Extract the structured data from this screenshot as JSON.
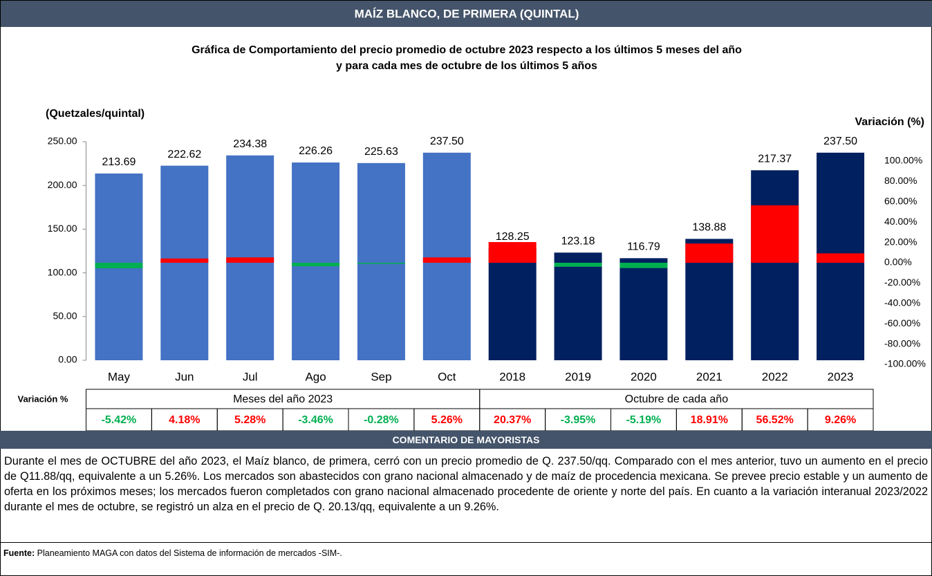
{
  "chart_data": {
    "type": "bar",
    "header": "MAÍZ BLANCO, DE PRIMERA (QUINTAL)",
    "title": "Gráfica de Comportamiento del precio promedio de octubre 2023 respecto a los últimos 5 meses del año",
    "subtitle": "y para cada mes de octubre de los últimos 5 años",
    "y_label": "(Quetzales/quintal)",
    "y2_label": "Variación (%)",
    "categories": [
      "May",
      "Jun",
      "Jul",
      "Ago",
      "Sep",
      "Oct",
      "2018",
      "2019",
      "2020",
      "2021",
      "2022",
      "2023"
    ],
    "values": [
      213.69,
      222.62,
      234.38,
      226.26,
      225.63,
      237.5,
      128.25,
      123.18,
      116.79,
      138.88,
      217.37,
      237.5
    ],
    "value_labels": [
      "213.69",
      "222.62",
      "234.38",
      "226.26",
      "225.63",
      "237.50",
      "128.25",
      "123.18",
      "116.79",
      "138.88",
      "217.37",
      "237.50"
    ],
    "colors": [
      "#4472c4",
      "#4472c4",
      "#4472c4",
      "#4472c4",
      "#4472c4",
      "#4472c4",
      "#002060",
      "#002060",
      "#002060",
      "#002060",
      "#002060",
      "#002060"
    ],
    "variation": {
      "axis": "y2",
      "values": [
        -5.42,
        4.18,
        5.28,
        -3.46,
        -0.28,
        5.26,
        20.37,
        -3.95,
        -5.19,
        18.91,
        56.52,
        9.26
      ],
      "value_labels": [
        "-5.42%",
        "4.18%",
        "5.28%",
        "-3.46%",
        "-0.28%",
        "5.26%",
        "20.37%",
        "-3.95%",
        "-5.19%",
        "18.91%",
        "56.52%",
        "9.26%"
      ],
      "positive_color": "#ff0000",
      "negative_color": "#00b050"
    },
    "ylim": [
      0,
      250
    ],
    "yticks": [
      {
        "value": 0,
        "label": "0.00"
      },
      {
        "value": 50,
        "label": "50.00"
      },
      {
        "value": 100,
        "label": "100.00"
      },
      {
        "value": 150,
        "label": "150.00"
      },
      {
        "value": 200,
        "label": "200.00"
      },
      {
        "value": 250,
        "label": "250.00"
      }
    ],
    "y2lim": [
      -100,
      100
    ],
    "y2ticks": [
      {
        "value": -100,
        "label": "-100.00%"
      },
      {
        "value": -80,
        "label": "-80.00%"
      },
      {
        "value": -60,
        "label": "-60.00%"
      },
      {
        "value": -40,
        "label": "-40.00%"
      },
      {
        "value": -20,
        "label": "-20.00%"
      },
      {
        "value": 0,
        "label": "0.00%"
      },
      {
        "value": 20,
        "label": "20.00%"
      },
      {
        "value": 40,
        "label": "40.00%"
      },
      {
        "value": 60,
        "label": "60.00%"
      },
      {
        "value": 80,
        "label": "80.00%"
      },
      {
        "value": 100,
        "label": "100.00%"
      }
    ],
    "table": {
      "row_label": "Variación %",
      "groups": [
        "Meses del año 2023",
        "Octubre de cada año"
      ]
    }
  },
  "comment": {
    "title": "COMENTARIO DE MAYORISTAS",
    "text": "Durante el mes de OCTUBRE del año 2023, el Maíz blanco, de primera, cerró con un precio promedio de Q. 237.50/qq. Comparado con el mes anterior, tuvo un aumento en el precio de Q11.88/qq, equivalente a un 5.26%. Los mercados son abastecidos con grano nacional almacenado y de maíz de procedencia mexicana. Se prevee precio estable y un aumento de oferta en los próximos meses; los mercados fueron completados con grano nacional almacenado procedente de oriente y norte del país. En cuanto a la variación interanual 2023/2022 durante el mes de octubre, se registró un alza en el precio de Q. 20.13/qq, equivalente a un 9.26%."
  },
  "source": {
    "label": "Fuente:",
    "text": "Planeamiento MAGA con datos del Sistema de información de mercados -SIM-."
  }
}
